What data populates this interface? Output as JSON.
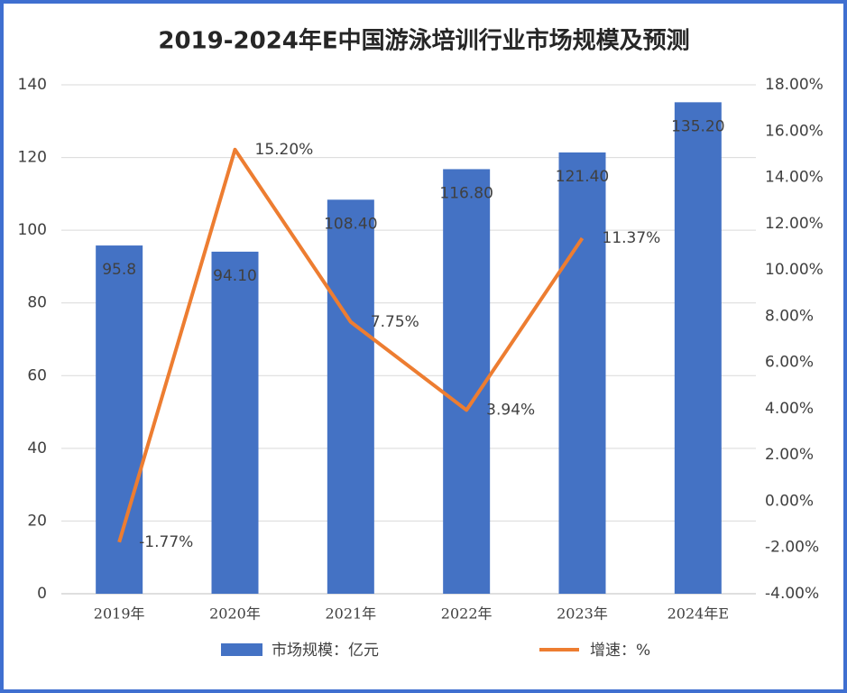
{
  "chart_data": {
    "type": "bar-line",
    "title": "2019-2024年E中国游泳培训行业市场规模及预测",
    "categories": [
      "2019年",
      "2020年",
      "2021年",
      "2022年",
      "2023年",
      "2024年E"
    ],
    "series": [
      {
        "name": "市场规模：亿元",
        "color": "#4472c4",
        "type": "bar",
        "values": [
          95.8,
          94.1,
          108.4,
          116.8,
          121.4,
          135.2
        ],
        "value_labels": [
          "95.8",
          "94.10",
          "108.40",
          "116.80",
          "121.40",
          "135.20"
        ]
      },
      {
        "name": "增速：%",
        "color": "#ed7d31",
        "type": "line",
        "axis": "y2",
        "values": [
          -1.77,
          15.2,
          7.75,
          3.94,
          11.37,
          null
        ],
        "value_labels": [
          "-1.77%",
          "15.20%",
          "7.75%",
          "3.94%",
          "11.37%",
          null
        ]
      }
    ],
    "ylim": [
      0,
      140
    ],
    "yticks": [
      0,
      20,
      40,
      60,
      80,
      100,
      120,
      140
    ],
    "y2lim": [
      -4,
      18
    ],
    "y2ticks": [
      {
        "value": -4,
        "label": "-4.00%"
      },
      {
        "value": -2,
        "label": "-2.00%"
      },
      {
        "value": 0,
        "label": "0.00%"
      },
      {
        "value": 2,
        "label": "2.00%"
      },
      {
        "value": 4,
        "label": "4.00%"
      },
      {
        "value": 6,
        "label": "6.00%"
      },
      {
        "value": 8,
        "label": "8.00%"
      },
      {
        "value": 10,
        "label": "10.00%"
      },
      {
        "value": 12,
        "label": "12.00%"
      },
      {
        "value": 14,
        "label": "14.00%"
      },
      {
        "value": 16,
        "label": "16.00%"
      },
      {
        "value": 18,
        "label": "18.00%"
      }
    ],
    "grid": true,
    "legend": "bottom"
  }
}
